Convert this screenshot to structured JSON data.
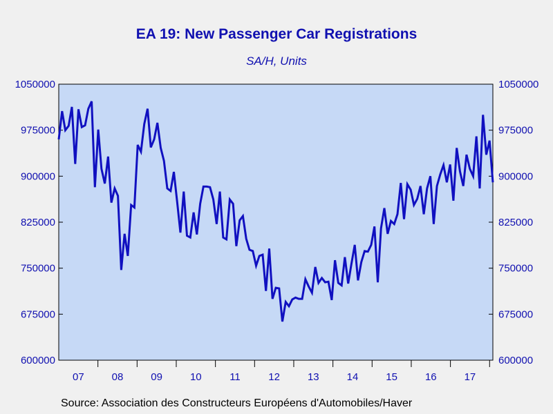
{
  "chart_data": {
    "type": "line",
    "title": "EA 19: New Passenger Car Registrations",
    "subtitle": "SA/H, Units",
    "source": "Source:  Association des Constructeurs Européens d'Automobiles/Haver",
    "ylim": [
      600000,
      1050000
    ],
    "y_ticks": [
      "1050000",
      "975000",
      "900000",
      "825000",
      "750000",
      "675000",
      "600000"
    ],
    "y_tick_values": [
      1050000,
      975000,
      900000,
      825000,
      750000,
      675000,
      600000
    ],
    "x_ticks": [
      "07",
      "08",
      "09",
      "10",
      "11",
      "12",
      "13",
      "14",
      "15",
      "16",
      "17"
    ],
    "x_start": "2007-01",
    "x_end": "2018-02",
    "series_color": "#1010c0",
    "plot_bg": "#c6d9f6",
    "series": [
      {
        "values": [
          960000,
          1006000,
          975000,
          982000,
          1013000,
          920000,
          1009000,
          980000,
          983000,
          1010000,
          1022000,
          882000,
          976000,
          912000,
          888000,
          932000,
          857000,
          880000,
          868000,
          747000,
          806000,
          770000,
          853000,
          849000,
          951000,
          940000,
          985000,
          1010000,
          947000,
          960000,
          987000,
          946000,
          925000,
          880000,
          876000,
          907000,
          858000,
          808000,
          875000,
          803000,
          800000,
          841000,
          805000,
          855000,
          883000,
          883000,
          882000,
          862000,
          822000,
          875000,
          800000,
          797000,
          862000,
          855000,
          786000,
          828000,
          835000,
          798000,
          780000,
          778000,
          754000,
          770000,
          772000,
          713000,
          782000,
          700000,
          718000,
          717000,
          663000,
          695000,
          688000,
          699000,
          702000,
          700000,
          700000,
          732000,
          720000,
          710000,
          752000,
          726000,
          734000,
          727000,
          728000,
          698000,
          763000,
          726000,
          722000,
          768000,
          725000,
          757000,
          788000,
          730000,
          760000,
          778000,
          777000,
          788000,
          818000,
          727000,
          815000,
          848000,
          806000,
          827000,
          822000,
          838000,
          889000,
          830000,
          887000,
          878000,
          853000,
          863000,
          884000,
          838000,
          880000,
          900000,
          822000,
          884000,
          903000,
          918000,
          890000,
          919000,
          860000,
          946000,
          908000,
          884000,
          935000,
          912000,
          900000,
          965000,
          880000,
          1000000,
          935000,
          958000,
          890000
        ]
      }
    ]
  }
}
